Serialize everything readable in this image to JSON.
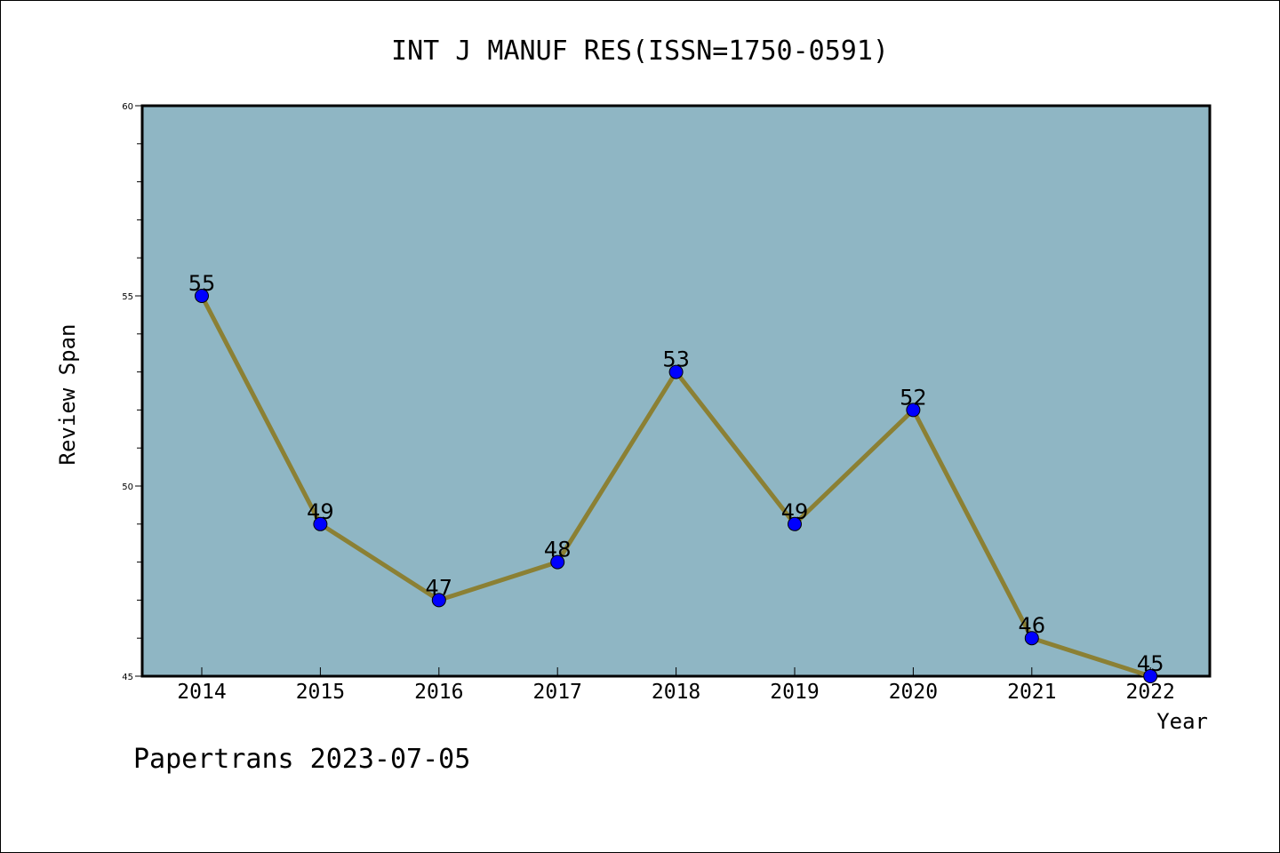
{
  "chart_data": {
    "type": "line",
    "title": "INT J MANUF RES(ISSN=1750-0591)",
    "xlabel": "Year",
    "ylabel": "Review Span",
    "categories": [
      "2014",
      "2015",
      "2016",
      "2017",
      "2018",
      "2019",
      "2020",
      "2021",
      "2022"
    ],
    "series": [
      {
        "values": [
          55,
          49,
          47,
          48,
          53,
          49,
          52,
          46,
          45
        ]
      }
    ],
    "data_labels": [
      "55",
      "49",
      "47",
      "48",
      "53",
      "49",
      "52",
      "46",
      "45"
    ],
    "ylim": [
      45,
      60
    ],
    "yticks": [
      45,
      50,
      55,
      60
    ],
    "ytick_labels": [
      "45",
      "50",
      "55",
      "60"
    ],
    "grid": false,
    "colors": {
      "plot_background": "#8fb6c4",
      "line": "#8b8034",
      "marker": "#0000ff"
    }
  },
  "footer": {
    "text": "Papertrans 2023-07-05"
  }
}
